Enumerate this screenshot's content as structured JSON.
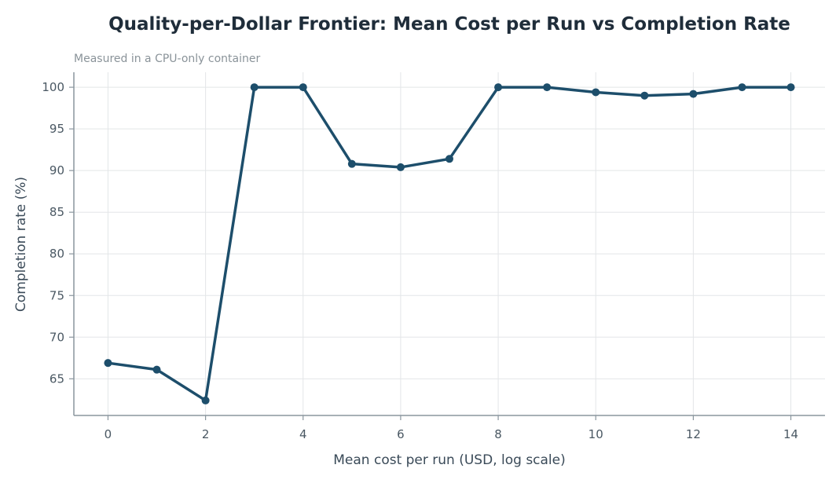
{
  "chart_data": {
    "type": "line",
    "title": "Quality-per-Dollar Frontier: Mean Cost per Run vs Completion Rate",
    "subtitle": "Measured in a CPU-only container",
    "xlabel": "Mean cost per run (USD, log scale)",
    "ylabel": "Completion rate (%)",
    "xlim": [
      -0.7,
      14.7
    ],
    "ylim": [
      60.6,
      101.8
    ],
    "xticks": [
      0,
      2,
      4,
      6,
      8,
      10,
      12,
      14
    ],
    "yticks": [
      65,
      70,
      75,
      80,
      85,
      90,
      95,
      100
    ],
    "grid": true,
    "series": [
      {
        "color": "#1d4e6b",
        "x": [
          0,
          1,
          2,
          3,
          4,
          5,
          6,
          7,
          8,
          9,
          10,
          11,
          12,
          13,
          14
        ],
        "y": [
          66.9,
          66.1,
          62.4,
          100.0,
          100.0,
          90.8,
          90.4,
          91.4,
          100.0,
          100.0,
          99.4,
          99.0,
          99.2,
          100.0,
          100.0
        ]
      }
    ]
  }
}
